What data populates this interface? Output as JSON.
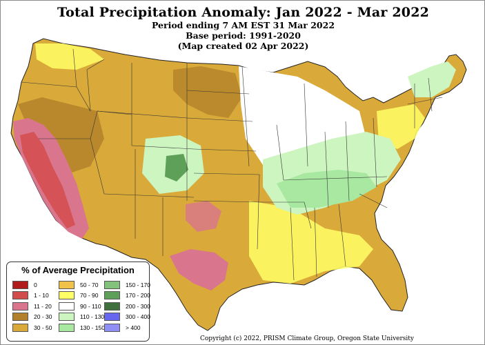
{
  "title": "Total Precipitation Anomaly: Jan 2022 - Mar 2022",
  "subtitle_lines": [
    "Period ending 7 AM EST 31 Mar 2022",
    "Base period: 1991-2020",
    "(Map created 02 Apr 2022)"
  ],
  "legend": {
    "title": "% of Average Precipitation",
    "items": [
      {
        "label": "0",
        "color": "#b01c1c"
      },
      {
        "label": "1 - 10",
        "color": "#d34c4c"
      },
      {
        "label": "11 - 20",
        "color": "#d9768d"
      },
      {
        "label": "20 - 30",
        "color": "#b0802a"
      },
      {
        "label": "30 - 50",
        "color": "#d9a93a"
      },
      {
        "label": "50 - 70",
        "color": "#f0c24a"
      },
      {
        "label": "70 - 90",
        "color": "#ffff66"
      },
      {
        "label": "90 - 110",
        "color": "#ffffff"
      },
      {
        "label": "110 - 130",
        "color": "#ccf5c0"
      },
      {
        "label": "130 - 150",
        "color": "#a8e8a0"
      },
      {
        "label": "150 - 170",
        "color": "#82c27a"
      },
      {
        "label": "170 - 200",
        "color": "#5ea058"
      },
      {
        "label": "200 - 300",
        "color": "#3f6f3c"
      },
      {
        "label": "300 - 400",
        "color": "#6666ee"
      },
      {
        "label": "> 400",
        "color": "#8f8ff5"
      }
    ]
  },
  "copyright": "Copyright (c) 2022, PRISM Climate Group, Oregon State University"
}
